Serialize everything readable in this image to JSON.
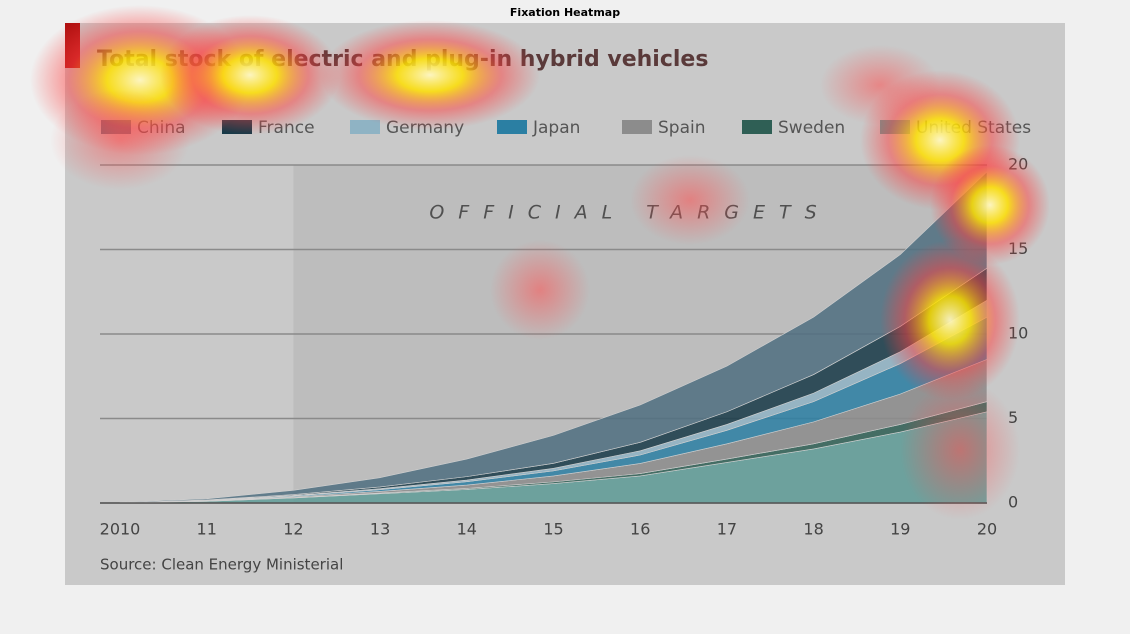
{
  "page_title": "Fixation Heatmap",
  "chart_data": {
    "type": "stacked-area",
    "title": "Total stock of electric and plug-in hybrid vehicles",
    "annotation": "OFFICIAL TARGETS",
    "source": "Source: Clean Energy Ministerial",
    "categories": [
      "2010",
      "11",
      "12",
      "13",
      "14",
      "15",
      "16",
      "17",
      "18",
      "19",
      "20"
    ],
    "ylim": [
      0,
      20
    ],
    "yticks": [
      0,
      5,
      10,
      15,
      20
    ],
    "grid": true,
    "series": [
      {
        "name": "United States",
        "color": "#5f9c98",
        "values": [
          0.02,
          0.1,
          0.3,
          0.55,
          0.8,
          1.15,
          1.6,
          2.4,
          3.2,
          4.2,
          5.4
        ]
      },
      {
        "name": "Sweden",
        "color": "#2f5f55",
        "values": [
          0,
          0.01,
          0.02,
          0.04,
          0.06,
          0.1,
          0.14,
          0.2,
          0.3,
          0.45,
          0.6
        ]
      },
      {
        "name": "Spain",
        "color": "#8c8c8c",
        "values": [
          0,
          0.02,
          0.05,
          0.1,
          0.2,
          0.35,
          0.6,
          0.9,
          1.3,
          1.8,
          2.5
        ]
      },
      {
        "name": "Japan",
        "color": "#2b7fa3",
        "values": [
          0,
          0.02,
          0.05,
          0.1,
          0.2,
          0.3,
          0.5,
          0.8,
          1.2,
          1.8,
          2.5
        ]
      },
      {
        "name": "Germany",
        "color": "#8fb3c4",
        "values": [
          0,
          0.01,
          0.03,
          0.06,
          0.1,
          0.15,
          0.25,
          0.35,
          0.5,
          0.7,
          1.0
        ]
      },
      {
        "name": "France",
        "color": "#173a48",
        "values": [
          0,
          0.02,
          0.05,
          0.1,
          0.2,
          0.3,
          0.5,
          0.75,
          1.1,
          1.5,
          1.9
        ]
      },
      {
        "name": "China",
        "color": "#4f6e80",
        "values": [
          0.03,
          0.07,
          0.25,
          0.55,
          1.04,
          1.65,
          2.21,
          2.7,
          3.4,
          4.25,
          5.7
        ]
      }
    ]
  }
}
